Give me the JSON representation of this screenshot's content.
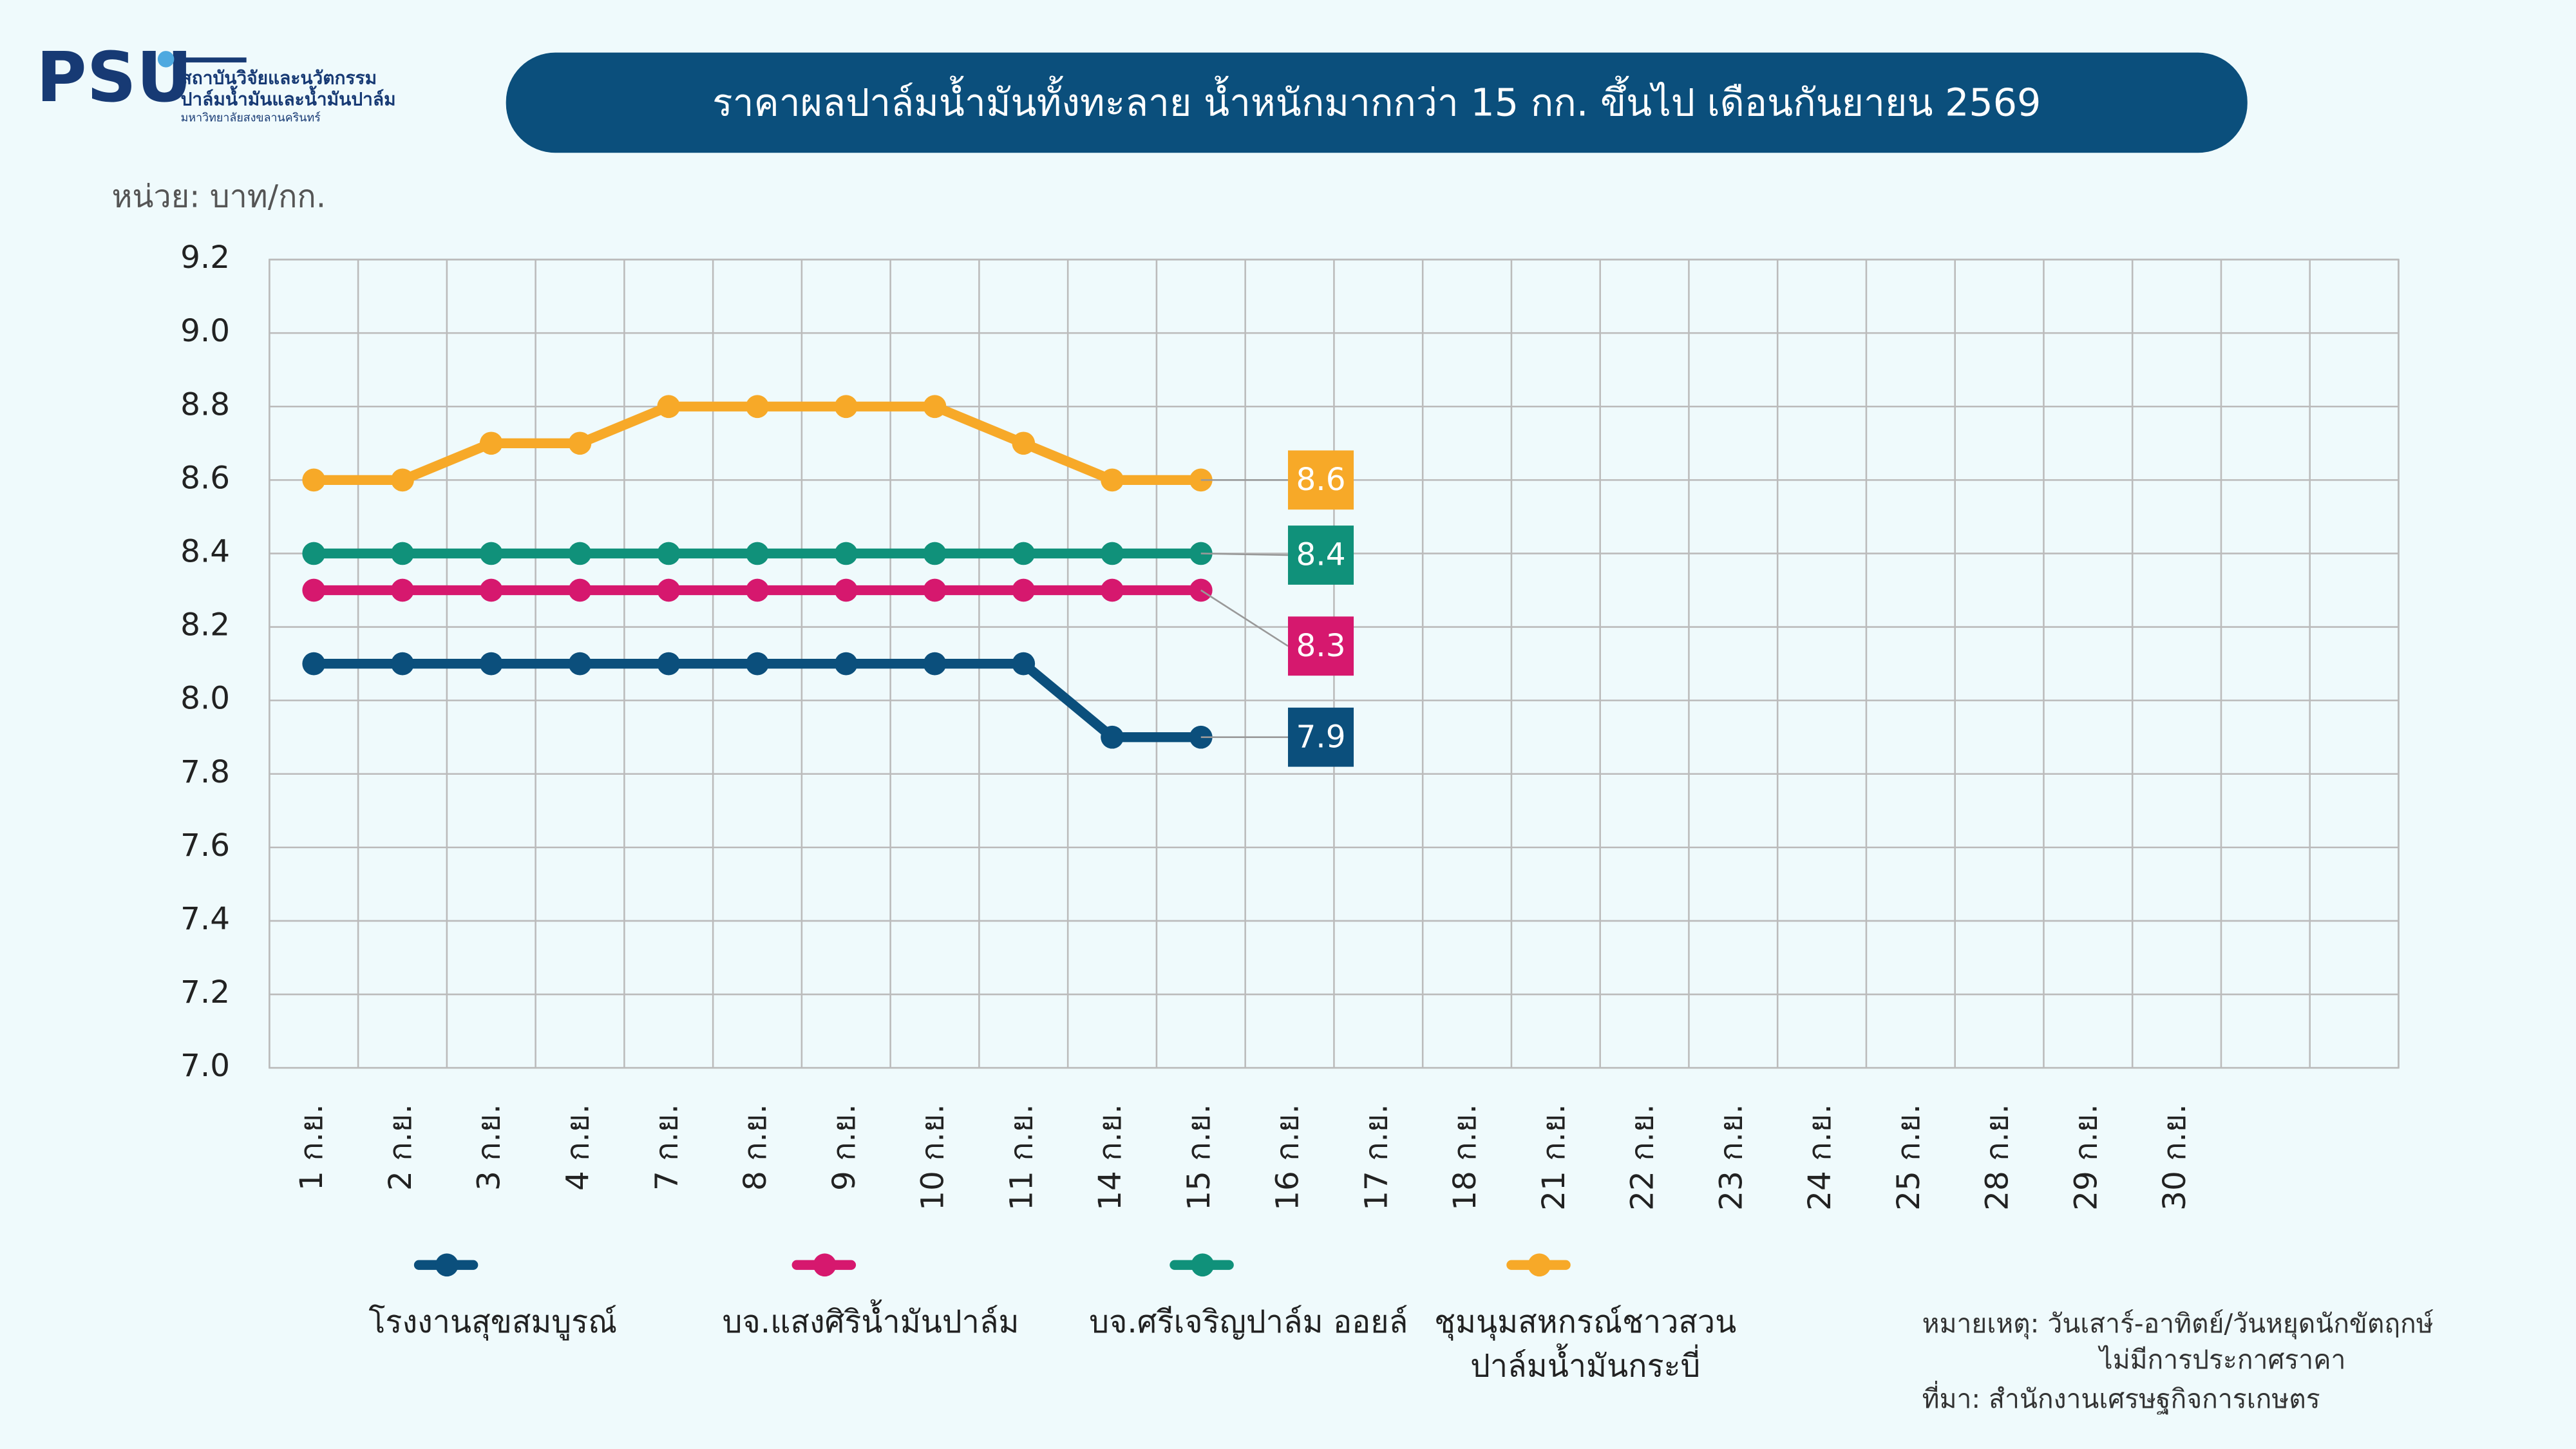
{
  "logo": {
    "mark": "PSU",
    "lines": [
      "สถาบันวิจัยและนวัตกรรม",
      "ปาล์มน้ำมันและน้ำมันปาล์ม",
      "มหาวิทยาลัยสงขลานครินทร์"
    ]
  },
  "chart_data": {
    "type": "line",
    "title": "ราคาผลปาล์มน้ำมันทั้งทะลาย น้ำหนักมากกว่า 15 กก. ขึ้นไป เดือนกันยายน 2569",
    "y_label": "หน่วย: บาท/กก.",
    "categories": [
      "1 ก.ย.",
      "2 ก.ย.",
      "3 ก.ย.",
      "4 ก.ย.",
      "7 ก.ย.",
      "8 ก.ย.",
      "9 ก.ย.",
      "10 ก.ย.",
      "11 ก.ย.",
      "14 ก.ย.",
      "15 ก.ย.",
      "16 ก.ย.",
      "17 ก.ย.",
      "18 ก.ย.",
      "21 ก.ย.",
      "22 ก.ย.",
      "23 ก.ย.",
      "24 ก.ย.",
      "25 ก.ย.",
      "28 ก.ย.",
      "29 ก.ย.",
      "30 ก.ย.",
      null,
      null
    ],
    "series": [
      {
        "name": "โรงงานสุขสมบูรณ์",
        "color": "#0b4f7c",
        "values": [
          8.1,
          8.1,
          8.1,
          8.1,
          8.1,
          8.1,
          8.1,
          8.1,
          8.1,
          7.9,
          7.9,
          null,
          null,
          null,
          null,
          null,
          null,
          null,
          null,
          null,
          null,
          null,
          null,
          null
        ]
      },
      {
        "name": "บจ.แสงศิริน้ำมันปาล์ม",
        "color": "#d6186e",
        "values": [
          8.3,
          8.3,
          8.3,
          8.3,
          8.3,
          8.3,
          8.3,
          8.3,
          8.3,
          8.3,
          8.3,
          null,
          null,
          null,
          null,
          null,
          null,
          null,
          null,
          null,
          null,
          null,
          null,
          null
        ]
      },
      {
        "name": "บจ.ศรีเจริญปาล์ม ออยล์",
        "color": "#10917a",
        "values": [
          8.4,
          8.4,
          8.4,
          8.4,
          8.4,
          8.4,
          8.4,
          8.4,
          8.4,
          8.4,
          8.4,
          null,
          null,
          null,
          null,
          null,
          null,
          null,
          null,
          null,
          null,
          null,
          null,
          null
        ]
      },
      {
        "name": "ชุมนุมสหกรณ์ชาวสวนปาล์มน้ำมันกระบี่",
        "color": "#f7a928",
        "values": [
          8.6,
          8.6,
          8.7,
          8.7,
          8.8,
          8.8,
          8.8,
          8.8,
          8.7,
          8.6,
          8.6,
          null,
          null,
          null,
          null,
          null,
          null,
          null,
          null,
          null,
          null,
          null,
          null,
          null
        ]
      }
    ],
    "ylim": [
      7,
      9.2
    ],
    "yticks": [
      {
        "value": 7,
        "label": "7.0"
      },
      7.2,
      7.4,
      7.6,
      7.8,
      {
        "value": 8,
        "label": "8.0"
      },
      8.2,
      8.4,
      8.6,
      8.8,
      {
        "value": 9,
        "label": "9.0"
      },
      9.2
    ],
    "grid": true,
    "notes": [
      "หมายเหตุ: วันเสาร์-อาทิตย์/วันหยุดนักขัตฤกษ์",
      "ไม่มีการประกาศราคา",
      "ที่มา: สำนักงานเศรษฐกิจการเกษตร"
    ]
  }
}
